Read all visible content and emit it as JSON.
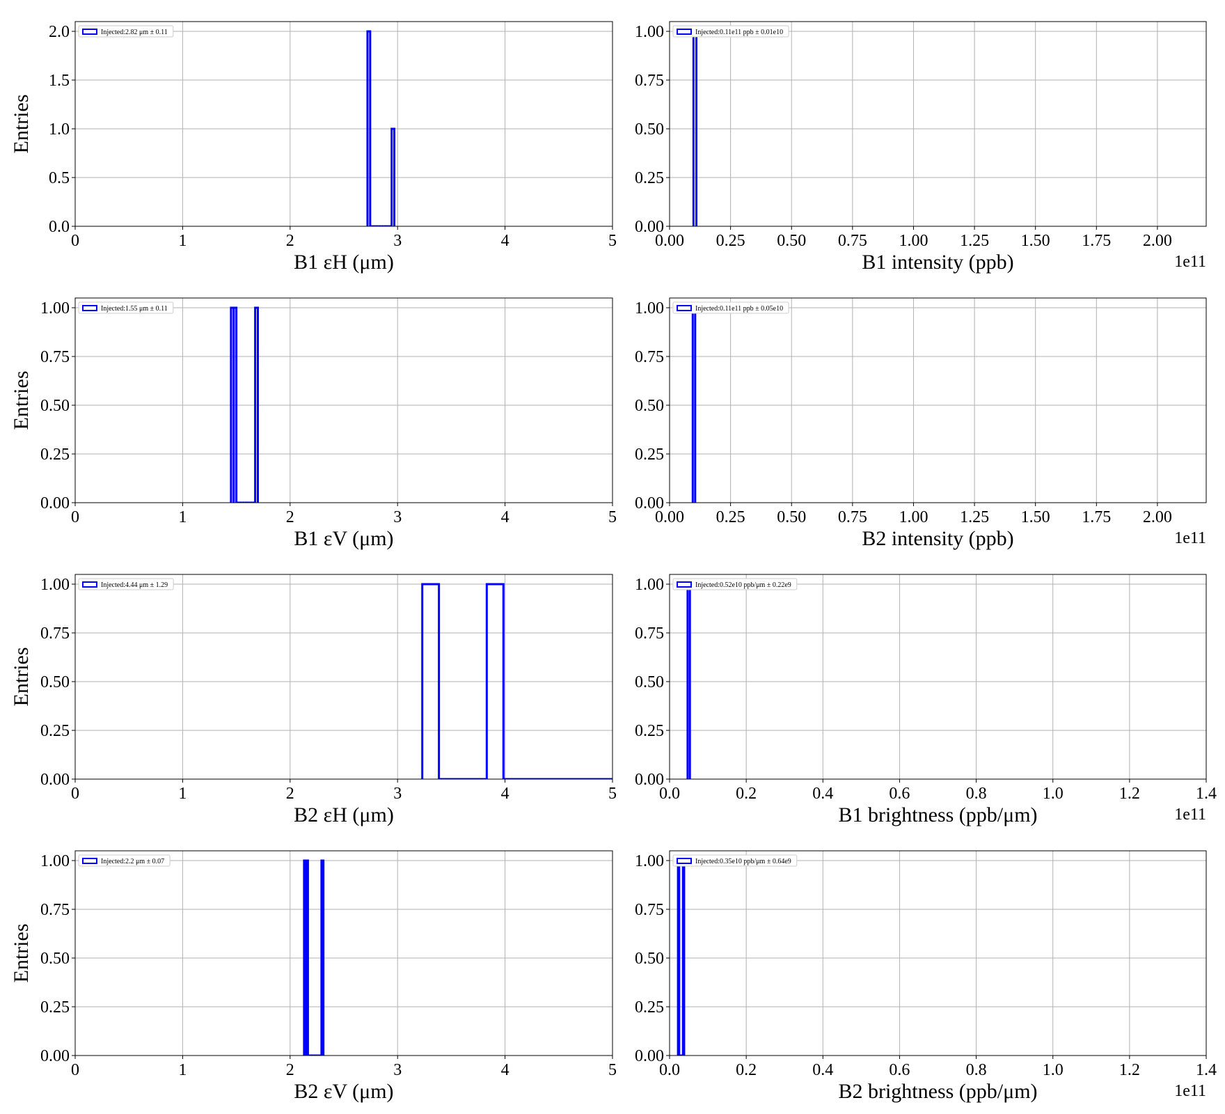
{
  "chart_data": [
    {
      "type": "histogram",
      "xlabel": "B1 εH (μm)",
      "ylabel": "Entries",
      "series": [
        {
          "name": "Injected:2.82 μm ± 0.11",
          "color": "#0000ff",
          "bins": [
            2.72,
            2.745,
            2.77,
            2.795,
            2.82,
            2.845,
            2.87,
            2.895,
            2.92,
            2.945,
            2.97
          ],
          "values": [
            2,
            0,
            0,
            0,
            0,
            0,
            0,
            0,
            0,
            1
          ]
        }
      ],
      "xlim": [
        0,
        5
      ],
      "xticks": [
        0,
        1,
        2,
        3,
        4,
        5
      ],
      "ylim": [
        0,
        2.1
      ],
      "yticks": [
        {
          "value": 0,
          "label": "0.0"
        },
        0.5,
        {
          "value": 1,
          "label": "1.0"
        },
        1.5,
        {
          "value": 2,
          "label": "2.0"
        }
      ],
      "grid": true
    },
    {
      "type": "histogram",
      "xlabel": "B1 intensity (ppb)",
      "x_offset": "1e11",
      "series": [
        {
          "name": "Injected:0.11e11 ppb ± 0.01e10",
          "color": "#0000ff",
          "bins": [
            0.098,
            0.11
          ],
          "values": [
            1
          ]
        }
      ],
      "xlim": [
        0,
        2.2
      ],
      "xticks": [
        {
          "value": 0,
          "label": "0.00"
        },
        0.25,
        {
          "value": 0.5,
          "label": "0.50"
        },
        0.75,
        {
          "value": 1,
          "label": "1.00"
        },
        1.25,
        {
          "value": 1.5,
          "label": "1.50"
        },
        1.75,
        {
          "value": 2,
          "label": "2.00"
        }
      ],
      "ylim": [
        0,
        1.05
      ],
      "yticks": [
        {
          "value": 0,
          "label": "0.00"
        },
        0.25,
        {
          "value": 0.5,
          "label": "0.50"
        },
        0.75,
        {
          "value": 1,
          "label": "1.00"
        }
      ],
      "grid": true
    },
    {
      "type": "histogram",
      "xlabel": "B1 εV (μm)",
      "ylabel": "Entries",
      "series": [
        {
          "name": "Injected:1.55 μm ± 0.11",
          "color": "#0000ff",
          "bins": [
            1.45,
            1.475,
            1.5,
            1.525,
            1.55,
            1.575,
            1.6,
            1.625,
            1.65,
            1.675,
            1.7
          ],
          "values": [
            1,
            1,
            0,
            0,
            0,
            0,
            0,
            0,
            0,
            1
          ]
        }
      ],
      "xlim": [
        0,
        5
      ],
      "xticks": [
        0,
        1,
        2,
        3,
        4,
        5
      ],
      "ylim": [
        0,
        1.05
      ],
      "yticks": [
        {
          "value": 0,
          "label": "0.00"
        },
        0.25,
        {
          "value": 0.5,
          "label": "0.50"
        },
        0.75,
        {
          "value": 1,
          "label": "1.00"
        }
      ],
      "grid": true
    },
    {
      "type": "histogram",
      "xlabel": "B2 intensity (ppb)",
      "x_offset": "1e11",
      "series": [
        {
          "name": "Injected:0.11e11 ppb ± 0.05e10",
          "color": "#0000ff",
          "bins": [
            0.095,
            0.105
          ],
          "values": [
            1
          ]
        }
      ],
      "xlim": [
        0,
        2.2
      ],
      "xticks": [
        {
          "value": 0,
          "label": "0.00"
        },
        0.25,
        {
          "value": 0.5,
          "label": "0.50"
        },
        0.75,
        {
          "value": 1,
          "label": "1.00"
        },
        1.25,
        {
          "value": 1.5,
          "label": "1.50"
        },
        1.75,
        {
          "value": 2,
          "label": "2.00"
        }
      ],
      "ylim": [
        0,
        1.05
      ],
      "yticks": [
        {
          "value": 0,
          "label": "0.00"
        },
        0.25,
        {
          "value": 0.5,
          "label": "0.50"
        },
        0.75,
        {
          "value": 1,
          "label": "1.00"
        }
      ],
      "grid": true
    },
    {
      "type": "histogram",
      "xlabel": "B2 εH (μm)",
      "ylabel": "Entries",
      "series": [
        {
          "name": "Injected:4.44 μm ± 1.29",
          "color": "#0000ff",
          "bins": [
            3.23,
            3.385,
            3.83,
            3.985,
            5.0
          ],
          "values": [
            1,
            0,
            1,
            0
          ]
        }
      ],
      "xlim": [
        0,
        5
      ],
      "xticks": [
        0,
        1,
        2,
        3,
        4,
        5
      ],
      "ylim": [
        0,
        1.05
      ],
      "yticks": [
        {
          "value": 0,
          "label": "0.00"
        },
        0.25,
        {
          "value": 0.5,
          "label": "0.50"
        },
        0.75,
        {
          "value": 1,
          "label": "1.00"
        }
      ],
      "grid": true
    },
    {
      "type": "histogram",
      "xlabel": "B1 brightness (ppb/μm)",
      "x_offset": "1e11",
      "series": [
        {
          "name": "Injected:0.52e10 ppb/μm ± 0.22e9",
          "color": "#0000ff",
          "bins": [
            0.047,
            0.053
          ],
          "values": [
            1
          ]
        }
      ],
      "xlim": [
        0,
        1.4
      ],
      "xticks": [
        {
          "value": 0,
          "label": "0.0"
        },
        0.2,
        0.4,
        0.6,
        0.8,
        {
          "value": 1,
          "label": "1.0"
        },
        1.2,
        1.4
      ],
      "ylim": [
        0,
        1.05
      ],
      "yticks": [
        {
          "value": 0,
          "label": "0.00"
        },
        0.25,
        {
          "value": 0.5,
          "label": "0.50"
        },
        0.75,
        {
          "value": 1,
          "label": "1.00"
        }
      ],
      "grid": true
    },
    {
      "type": "histogram",
      "xlabel": "B2 εV (μm)",
      "ylabel": "Entries",
      "series": [
        {
          "name": "Injected:2.2 μm ± 0.07",
          "color": "#0000ff",
          "bins": [
            2.13,
            2.148,
            2.166,
            2.184,
            2.202,
            2.22,
            2.238,
            2.256,
            2.274,
            2.292,
            2.31
          ],
          "values": [
            1,
            1,
            0,
            0,
            0,
            0,
            0,
            0,
            0,
            1
          ]
        }
      ],
      "xlim": [
        0,
        5
      ],
      "xticks": [
        0,
        1,
        2,
        3,
        4,
        5
      ],
      "ylim": [
        0,
        1.05
      ],
      "yticks": [
        {
          "value": 0,
          "label": "0.00"
        },
        0.25,
        {
          "value": 0.5,
          "label": "0.50"
        },
        0.75,
        {
          "value": 1,
          "label": "1.00"
        }
      ],
      "grid": true
    },
    {
      "type": "histogram",
      "xlabel": "B2 brightness (ppb/μm)",
      "x_offset": "1e11",
      "series": [
        {
          "name": "Injected:0.35e10 ppb/μm ± 0.64e9",
          "color": "#0000ff",
          "bins": [
            0.022,
            0.025,
            0.035,
            0.038
          ],
          "values": [
            1,
            0,
            1
          ]
        }
      ],
      "xlim": [
        0,
        1.4
      ],
      "xticks": [
        {
          "value": 0,
          "label": "0.0"
        },
        0.2,
        0.4,
        0.6,
        0.8,
        {
          "value": 1,
          "label": "1.0"
        },
        1.2,
        1.4
      ],
      "ylim": [
        0,
        1.05
      ],
      "yticks": [
        {
          "value": 0,
          "label": "0.00"
        },
        0.25,
        {
          "value": 0.5,
          "label": "0.50"
        },
        0.75,
        {
          "value": 1,
          "label": "1.00"
        }
      ],
      "grid": true
    }
  ]
}
